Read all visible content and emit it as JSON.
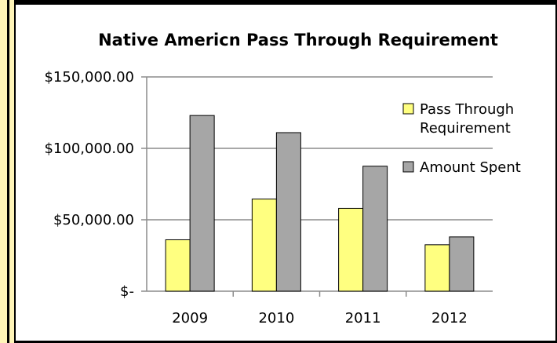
{
  "chart_data": {
    "type": "bar",
    "title": "Native Americn Pass Through Requirement",
    "xlabel": "",
    "ylabel": "",
    "categories": [
      "2009",
      "2010",
      "2011",
      "2012"
    ],
    "series": [
      {
        "name": "Pass Through Requirement",
        "values": [
          36000,
          64500,
          58000,
          32500
        ],
        "color": "#ffff80"
      },
      {
        "name": "Amount Spent",
        "values": [
          123000,
          111000,
          87500,
          38000
        ],
        "color": "#a6a6a6"
      }
    ],
    "ylim": [
      0,
      150000
    ],
    "yticks": [
      0,
      50000,
      100000,
      150000
    ],
    "ytick_labels": [
      "$-",
      "$50,000.00",
      "$100,000.00",
      "$150,000.00"
    ],
    "grid": "horizontal",
    "legend_position": "right",
    "legend_lines": [
      [
        "Pass",
        "Through",
        "Requirement"
      ],
      [
        "Amount",
        "Spent"
      ]
    ]
  }
}
